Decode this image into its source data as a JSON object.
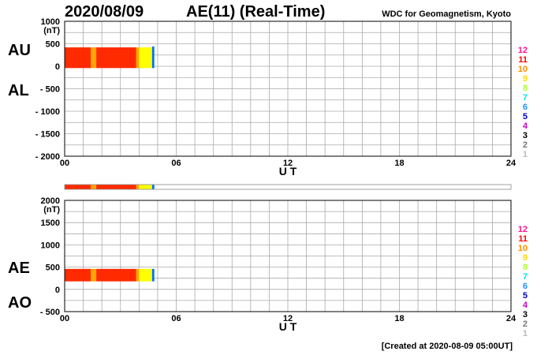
{
  "header": {
    "date": "2020/08/09",
    "title": "AE(11) (Real-Time)",
    "organization": "WDC for Geomagnetism, Kyoto"
  },
  "footer": {
    "created": "[Created at 2020-08-09 05:00UT]"
  },
  "colors": {
    "red": "#ff2a00",
    "orange": "#ffa500",
    "yellow": "#ffff00",
    "blue": "#0070ff",
    "grid": "#aaaaaa"
  },
  "station_legend": [
    {
      "label": "12",
      "color": "#ff1493"
    },
    {
      "label": "11",
      "color": "#ff0000"
    },
    {
      "label": "10",
      "color": "#ff8c00"
    },
    {
      "label": "9",
      "color": "#ffd700"
    },
    {
      "label": "8",
      "color": "#adff2f"
    },
    {
      "label": "7",
      "color": "#00e5ee"
    },
    {
      "label": "6",
      "color": "#1e90ff"
    },
    {
      "label": "5",
      "color": "#0000cd"
    },
    {
      "label": "4",
      "color": "#cc00cc"
    },
    {
      "label": "3",
      "color": "#000000"
    },
    {
      "label": "2",
      "color": "#777777"
    },
    {
      "label": "1",
      "color": "#bbbbbb"
    }
  ],
  "chart_data": [
    {
      "type": "area",
      "name": "au-al-panel",
      "side_labels": {
        "upper": "AU",
        "lower": "AL"
      },
      "xlabel": "U T",
      "x_ticks": [
        "00",
        "06",
        "12",
        "18",
        "24"
      ],
      "xlim": [
        0,
        24
      ],
      "ylim": [
        -2000,
        1000
      ],
      "y_ticks": [
        {
          "value": 1000,
          "label": "1000"
        },
        {
          "value": 500,
          "label": "500"
        },
        {
          "value": 0,
          "label": "0"
        },
        {
          "value": -500,
          "label": "- 500"
        },
        {
          "value": -1000,
          "label": "- 1000"
        },
        {
          "value": -1500,
          "label": "- 1500"
        },
        {
          "value": -2000,
          "label": "- 2000"
        }
      ],
      "unit": "(nT)",
      "grid": true,
      "series": [
        {
          "color_key": "red",
          "x_start": 0.0,
          "x_end": 1.4,
          "upper": 420,
          "lower": -40
        },
        {
          "color_key": "orange",
          "x_start": 1.4,
          "x_end": 1.7,
          "upper": 420,
          "lower": -40
        },
        {
          "color_key": "red",
          "x_start": 1.7,
          "x_end": 3.85,
          "upper": 420,
          "lower": -40
        },
        {
          "color_key": "orange",
          "x_start": 3.85,
          "x_end": 4.0,
          "upper": 420,
          "lower": -40
        },
        {
          "color_key": "yellow",
          "x_start": 4.0,
          "x_end": 4.7,
          "upper": 420,
          "lower": -40
        },
        {
          "color_key": "blue",
          "x_start": 4.7,
          "x_end": 4.82,
          "upper": 440,
          "lower": -40
        }
      ]
    },
    {
      "type": "area",
      "name": "ae-ao-panel",
      "side_labels": {
        "upper": "AE",
        "lower": "AO"
      },
      "xlabel": "U T",
      "x_ticks": [
        "00",
        "06",
        "12",
        "18",
        "24"
      ],
      "xlim": [
        0,
        24
      ],
      "ylim": [
        -500,
        2000
      ],
      "y_ticks": [
        {
          "value": 2000,
          "label": "2000"
        },
        {
          "value": 1500,
          "label": "1500"
        },
        {
          "value": 1000,
          "label": "1000"
        },
        {
          "value": 500,
          "label": "500"
        },
        {
          "value": 0,
          "label": "0"
        },
        {
          "value": -500,
          "label": "- 500"
        }
      ],
      "unit": "(nT)",
      "grid": true,
      "series": [
        {
          "color_key": "red",
          "x_start": 0.0,
          "x_end": 1.4,
          "upper": 460,
          "lower": 180
        },
        {
          "color_key": "orange",
          "x_start": 1.4,
          "x_end": 1.7,
          "upper": 460,
          "lower": 180
        },
        {
          "color_key": "red",
          "x_start": 1.7,
          "x_end": 3.85,
          "upper": 460,
          "lower": 180
        },
        {
          "color_key": "orange",
          "x_start": 3.85,
          "x_end": 4.0,
          "upper": 460,
          "lower": 180
        },
        {
          "color_key": "yellow",
          "x_start": 4.0,
          "x_end": 4.7,
          "upper": 460,
          "lower": 180
        },
        {
          "color_key": "blue",
          "x_start": 4.7,
          "x_end": 4.82,
          "upper": 460,
          "lower": 180
        }
      ]
    }
  ],
  "coverage_bar": {
    "xlim": [
      0,
      24
    ],
    "segments": [
      {
        "color_key": "red",
        "x_start": 0.0,
        "x_end": 1.4
      },
      {
        "color_key": "orange",
        "x_start": 1.4,
        "x_end": 1.7
      },
      {
        "color_key": "red",
        "x_start": 1.7,
        "x_end": 3.85
      },
      {
        "color_key": "orange",
        "x_start": 3.85,
        "x_end": 4.0
      },
      {
        "color_key": "yellow",
        "x_start": 4.0,
        "x_end": 4.7
      },
      {
        "color_key": "blue",
        "x_start": 4.7,
        "x_end": 4.82
      }
    ]
  }
}
